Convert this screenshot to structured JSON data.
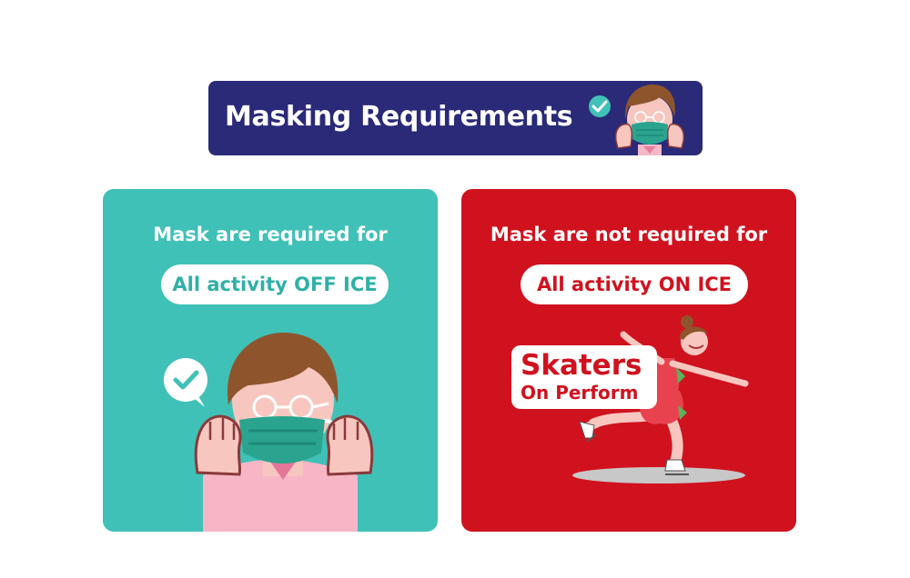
{
  "banner": {
    "title": "Masking Requirements",
    "art_icon": "person-wearing-mask-icon"
  },
  "left_card": {
    "heading": "Mask are required for",
    "pill": "All activity OFF ICE",
    "art_icon": "person-putting-on-mask-icon",
    "badge_icon": "check-bubble-icon"
  },
  "right_card": {
    "heading": "Mask are not required for",
    "pill": "All activity ON ICE",
    "label_line1": "Skaters",
    "label_line2": "On Perform",
    "art_icon": "figure-skater-icon"
  },
  "colors": {
    "banner_bg": "#2a2a78",
    "teal": "#40c1b7",
    "red": "#d0121f",
    "mask_green": "#2aa38f",
    "white": "#ffffff"
  }
}
